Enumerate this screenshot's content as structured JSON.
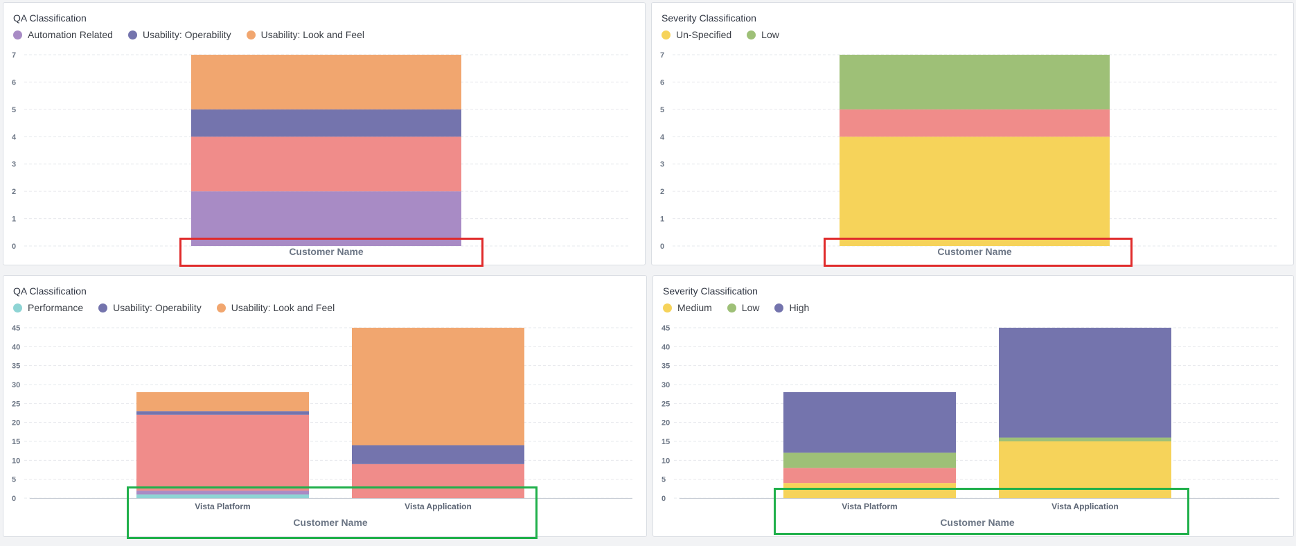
{
  "panels": [
    {
      "id": "top-left",
      "title": "QA Classification",
      "legend": [
        {
          "label": "Automation Related",
          "color": "#a88bc5"
        },
        {
          "label": "Usability: Operability",
          "color": "#7474ad"
        },
        {
          "label": "Usability: Look and Feel",
          "color": "#f1a66f"
        }
      ]
    },
    {
      "id": "top-right",
      "title": "Severity Classification",
      "legend": [
        {
          "label": "Un-Specified",
          "color": "#f6d35a"
        },
        {
          "label": "Low",
          "color": "#9ec077"
        }
      ]
    },
    {
      "id": "bottom-left",
      "title": "QA Classification",
      "legend": [
        {
          "label": "Performance",
          "color": "#8ed4d4"
        },
        {
          "label": "Usability: Operability",
          "color": "#7474ad"
        },
        {
          "label": "Usability: Look and Feel",
          "color": "#f1a66f"
        }
      ]
    },
    {
      "id": "bottom-right",
      "title": "Severity Classification",
      "legend": [
        {
          "label": "Medium",
          "color": "#f6d35a"
        },
        {
          "label": "Low",
          "color": "#9ec077"
        },
        {
          "label": "High",
          "color": "#7474ad"
        }
      ]
    }
  ],
  "chart_data": [
    {
      "type": "bar",
      "stacked": true,
      "title": "QA Classification",
      "xlabel": "Customer Name",
      "ylabel": "",
      "categories": [
        ""
      ],
      "ylim": [
        0,
        7
      ],
      "yticks": [
        0,
        1,
        2,
        3,
        4,
        5,
        6,
        7
      ],
      "series": [
        {
          "name": "Automation Related",
          "color": "#a88bc5",
          "values": [
            2
          ]
        },
        {
          "color": "#f08c8a",
          "values": [
            2
          ]
        },
        {
          "name": "Usability: Operability",
          "color": "#7474ad",
          "values": [
            1
          ]
        },
        {
          "name": "Usability: Look and Feel",
          "color": "#f1a66f",
          "values": [
            2
          ]
        }
      ],
      "grid": true,
      "legend_position": "top-left"
    },
    {
      "type": "bar",
      "stacked": true,
      "title": "Severity Classification",
      "xlabel": "Customer Name",
      "ylabel": "",
      "categories": [
        ""
      ],
      "ylim": [
        0,
        7
      ],
      "yticks": [
        0,
        1,
        2,
        3,
        4,
        5,
        6,
        7
      ],
      "series": [
        {
          "name": "Un-Specified",
          "color": "#f6d35a",
          "values": [
            4
          ]
        },
        {
          "color": "#f08c8a",
          "values": [
            1
          ]
        },
        {
          "name": "Low",
          "color": "#9ec077",
          "values": [
            2
          ]
        }
      ],
      "grid": true,
      "legend_position": "top-left"
    },
    {
      "type": "bar",
      "stacked": true,
      "title": "QA Classification",
      "xlabel": "Customer Name",
      "ylabel": "",
      "categories": [
        "Vista Platform",
        "Vista Application"
      ],
      "ylim": [
        0,
        45
      ],
      "yticks": [
        0,
        5,
        10,
        15,
        20,
        25,
        30,
        35,
        40,
        45
      ],
      "series": [
        {
          "name": "Performance",
          "color": "#8ed4d4",
          "values": [
            1,
            0
          ]
        },
        {
          "color": "#a88bc5",
          "values": [
            1,
            0
          ]
        },
        {
          "color": "#f08c8a",
          "values": [
            20,
            9
          ]
        },
        {
          "name": "Usability: Operability",
          "color": "#7474ad",
          "values": [
            1,
            5
          ]
        },
        {
          "name": "Usability: Look and Feel",
          "color": "#f1a66f",
          "values": [
            5,
            31
          ]
        }
      ],
      "grid": true,
      "legend_position": "top-left"
    },
    {
      "type": "bar",
      "stacked": true,
      "title": "Severity Classification",
      "xlabel": "Customer Name",
      "ylabel": "",
      "categories": [
        "Vista Platform",
        "Vista Application"
      ],
      "ylim": [
        0,
        45
      ],
      "yticks": [
        0,
        5,
        10,
        15,
        20,
        25,
        30,
        35,
        40,
        45
      ],
      "series": [
        {
          "name": "Medium",
          "color": "#f6d35a",
          "values": [
            4,
            15
          ]
        },
        {
          "color": "#f08c8a",
          "values": [
            4,
            0
          ]
        },
        {
          "name": "Low",
          "color": "#9ec077",
          "values": [
            4,
            1
          ]
        },
        {
          "name": "High",
          "color": "#7474ad",
          "values": [
            16,
            29
          ]
        }
      ],
      "grid": true,
      "legend_position": "top-left"
    }
  ],
  "highlight_colors": {
    "red": "#e02b2b",
    "green": "#20b04b"
  }
}
